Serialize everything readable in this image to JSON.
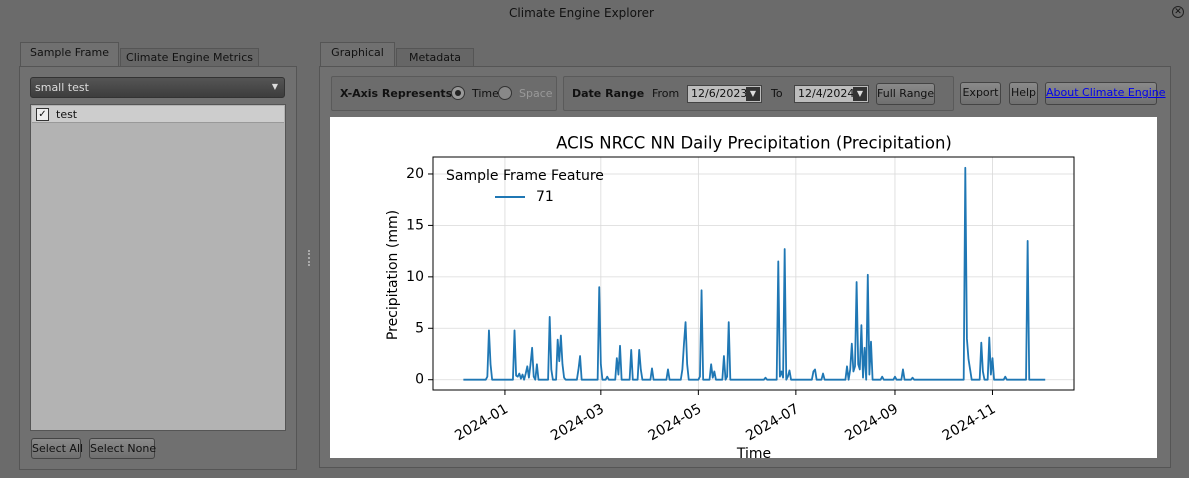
{
  "window": {
    "title": "Climate Engine Explorer"
  },
  "left_panel": {
    "tabs": [
      "Sample Frame",
      "Climate Engine Metrics"
    ],
    "dropdown": "small test",
    "items": [
      "test"
    ],
    "buttons": [
      "Select All",
      "Select None"
    ]
  },
  "right_panel": {
    "tabs": [
      "Graphical",
      "Metadata"
    ],
    "x_axis_label": "X-Axis Represents",
    "options": [
      "Time",
      "Space"
    ],
    "date_range_label": "Date Range",
    "from_label": "From",
    "from_date": "12/6/2023",
    "to_label": "To",
    "to_date": "12/4/2024",
    "full_range": "Full Range",
    "buttons": [
      "Export",
      "Help"
    ],
    "link": "About Climate Engine"
  },
  "chart_data": {
    "type": "line",
    "title": "ACIS NRCC NN Daily Precipitation (Precipitation)",
    "xlabel": "Time",
    "ylabel": "Precipitation (mm)",
    "legend_title": "Sample Frame Feature",
    "legend": "upper left",
    "grid": true,
    "x": [
      "2023-12-06",
      "2023-12-20",
      "2023-12-21",
      "2023-12-22",
      "2023-12-23",
      "2023-12-24",
      "2024-01-06",
      "2024-01-07",
      "2024-01-08",
      "2024-01-09",
      "2024-01-10",
      "2024-01-11",
      "2024-01-12",
      "2024-01-13",
      "2024-01-14",
      "2024-01-15",
      "2024-01-16",
      "2024-01-17",
      "2024-01-18",
      "2024-01-19",
      "2024-01-20",
      "2024-01-21",
      "2024-01-22",
      "2024-01-28",
      "2024-01-29",
      "2024-01-30",
      "2024-01-31",
      "2024-02-02",
      "2024-02-03",
      "2024-02-04",
      "2024-02-05",
      "2024-02-06",
      "2024-02-07",
      "2024-02-08",
      "2024-02-15",
      "2024-02-16",
      "2024-02-17",
      "2024-02-18",
      "2024-02-28",
      "2024-02-29",
      "2024-03-01",
      "2024-03-02",
      "2024-03-04",
      "2024-03-05",
      "2024-03-06",
      "2024-03-10",
      "2024-03-11",
      "2024-03-12",
      "2024-03-13",
      "2024-03-14",
      "2024-03-19",
      "2024-03-20",
      "2024-03-21",
      "2024-03-24",
      "2024-03-25",
      "2024-03-26",
      "2024-03-27",
      "2024-04-01",
      "2024-04-02",
      "2024-04-03",
      "2024-04-11",
      "2024-04-12",
      "2024-04-13",
      "2024-04-20",
      "2024-04-21",
      "2024-04-22",
      "2024-04-23",
      "2024-04-24",
      "2024-04-25",
      "2024-05-01",
      "2024-05-02",
      "2024-05-03",
      "2024-05-04",
      "2024-05-08",
      "2024-05-09",
      "2024-05-10",
      "2024-05-11",
      "2024-05-12",
      "2024-05-16",
      "2024-05-17",
      "2024-05-18",
      "2024-05-19",
      "2024-05-20",
      "2024-05-21",
      "2024-06-11",
      "2024-06-12",
      "2024-06-13",
      "2024-06-19",
      "2024-06-20",
      "2024-06-21",
      "2024-06-22",
      "2024-06-23",
      "2024-06-24",
      "2024-06-25",
      "2024-06-26",
      "2024-06-27",
      "2024-06-28",
      "2024-07-11",
      "2024-07-12",
      "2024-07-13",
      "2024-07-14",
      "2024-07-17",
      "2024-07-18",
      "2024-07-19",
      "2024-08-01",
      "2024-08-02",
      "2024-08-03",
      "2024-08-04",
      "2024-08-05",
      "2024-08-06",
      "2024-08-07",
      "2024-08-08",
      "2024-08-09",
      "2024-08-10",
      "2024-08-11",
      "2024-08-12",
      "2024-08-13",
      "2024-08-14",
      "2024-08-15",
      "2024-08-16",
      "2024-08-17",
      "2024-08-18",
      "2024-08-23",
      "2024-08-24",
      "2024-08-25",
      "2024-08-31",
      "2024-09-01",
      "2024-09-02",
      "2024-09-05",
      "2024-09-06",
      "2024-09-07",
      "2024-09-11",
      "2024-09-12",
      "2024-09-13",
      "2024-10-14",
      "2024-10-15",
      "2024-10-16",
      "2024-10-17",
      "2024-10-18",
      "2024-10-19",
      "2024-10-24",
      "2024-10-25",
      "2024-10-26",
      "2024-10-27",
      "2024-10-29",
      "2024-10-30",
      "2024-10-31",
      "2024-11-01",
      "2024-11-02",
      "2024-11-08",
      "2024-11-09",
      "2024-11-10",
      "2024-11-22",
      "2024-11-23",
      "2024-11-24",
      "2024-12-04"
    ],
    "series": [
      {
        "name": "71",
        "color": "#1f77b4",
        "values": [
          0,
          0,
          0.3,
          4.8,
          1.5,
          0,
          0,
          4.8,
          0.4,
          0.3,
          0.6,
          0.1,
          0.5,
          0,
          0.6,
          1.3,
          0.2,
          1.5,
          3.1,
          0.3,
          0,
          1.5,
          0,
          0,
          6.1,
          1.0,
          0,
          0,
          3.9,
          1.8,
          4.3,
          1.5,
          0.2,
          0,
          0,
          1.0,
          2.3,
          0,
          0,
          9.0,
          1.5,
          0,
          0,
          0.3,
          0,
          0,
          2.1,
          0.5,
          3.3,
          0,
          0,
          2.9,
          0,
          0,
          2.9,
          1.0,
          0,
          0,
          1.1,
          0,
          0,
          1.0,
          0,
          0,
          1.0,
          3.5,
          5.6,
          1.5,
          0,
          0,
          0.3,
          8.7,
          0,
          0,
          1.5,
          0.2,
          0.8,
          0,
          0,
          2.3,
          0,
          0.3,
          5.6,
          0,
          0,
          0.2,
          0,
          0,
          11.5,
          0.3,
          0.8,
          0.2,
          12.7,
          0,
          0.3,
          0.9,
          0,
          0,
          0.8,
          1.0,
          0,
          0,
          0.6,
          0,
          0,
          1.3,
          0,
          1.0,
          3.5,
          0.8,
          1.3,
          9.5,
          1.5,
          1.0,
          5.3,
          0.2,
          3.1,
          0,
          10.2,
          0.5,
          3.7,
          0,
          0,
          0.3,
          0,
          0,
          0.3,
          0,
          0,
          1.0,
          0,
          0,
          0.2,
          0,
          0,
          20.6,
          4.0,
          2.0,
          1.0,
          0,
          0,
          3.6,
          0.8,
          0,
          0,
          4.1,
          0.5,
          2.1,
          0,
          0,
          0.3,
          0,
          0,
          13.5,
          0,
          0
        ]
      }
    ],
    "xlim": [
      "2023-11-17",
      "2024-12-22"
    ],
    "xticks": [
      {
        "value": "2024-01-01",
        "label": "2024-01"
      },
      {
        "value": "2024-03-01",
        "label": "2024-03"
      },
      {
        "value": "2024-05-01",
        "label": "2024-05"
      },
      {
        "value": "2024-07-01",
        "label": "2024-07"
      },
      {
        "value": "2024-09-01",
        "label": "2024-09"
      },
      {
        "value": "2024-11-01",
        "label": "2024-11"
      }
    ],
    "ylim": [
      -1,
      21.65
    ],
    "yticks": [
      0,
      5,
      10,
      15,
      20
    ]
  }
}
